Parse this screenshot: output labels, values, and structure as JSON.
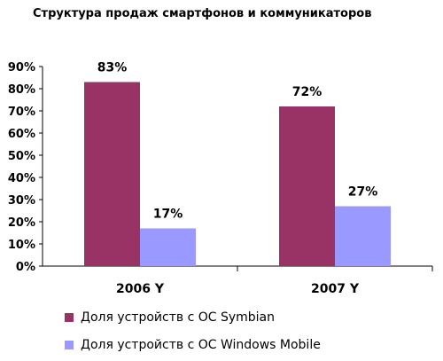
{
  "chart_data": {
    "type": "bar",
    "title": "Структура продаж смартфонов и коммуникаторов",
    "categories": [
      "2006 Y",
      "2007 Y"
    ],
    "series": [
      {
        "name": "Доля устройств с ОС Symbian",
        "values": [
          83,
          72
        ],
        "labels": [
          "83%",
          "72%"
        ],
        "color": "#993366"
      },
      {
        "name": "Доля устройств с ОС Windows Mobile",
        "values": [
          17,
          27
        ],
        "labels": [
          "17%",
          "27%"
        ],
        "color": "#9999ff"
      }
    ],
    "y_ticks": [
      "0%",
      "10%",
      "20%",
      "30%",
      "40%",
      "50%",
      "60%",
      "70%",
      "80%",
      "90%"
    ],
    "ylim": [
      0,
      90
    ],
    "xlabel": "",
    "ylabel": "",
    "grid": false,
    "legend_position": "bottom"
  }
}
